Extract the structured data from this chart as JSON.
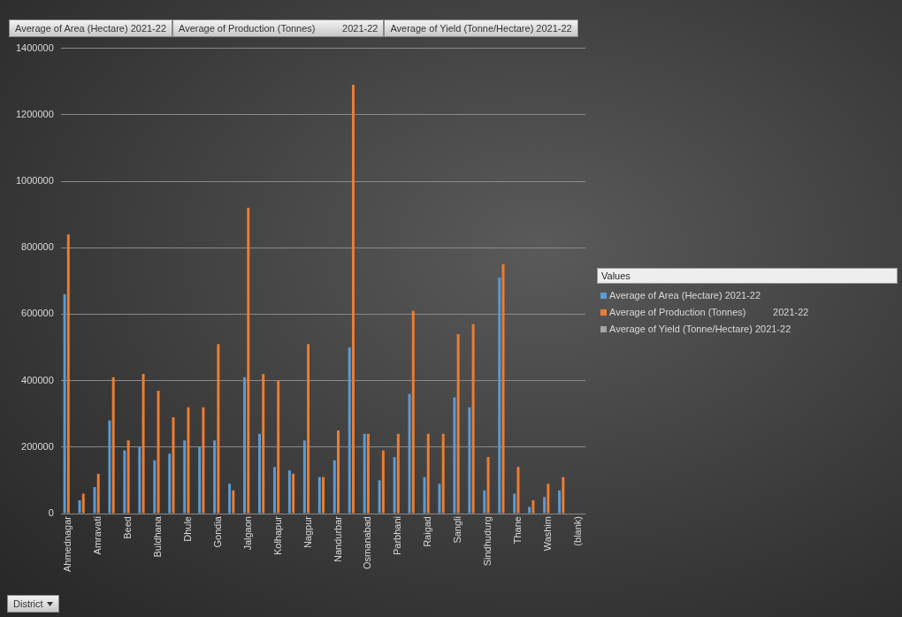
{
  "chart_data": {
    "type": "bar",
    "categories": [
      "Ahmednagar",
      null,
      "Amravati",
      null,
      "Beed",
      null,
      "Buldhana",
      null,
      "Dhule",
      null,
      "Gondia",
      null,
      "Jalgaon",
      null,
      "Kolhapur",
      null,
      "Nagpur",
      null,
      "Nandurbar",
      null,
      "Osmanabad",
      null,
      "Parbhani",
      null,
      "Raigad",
      null,
      "Sangli",
      null,
      "Sindhudurg",
      null,
      "Thane",
      null,
      "Washim",
      null,
      "(blank)"
    ],
    "series": [
      {
        "name": "Average of Area (Hectare) 2021-22",
        "color": "#5b9bd5",
        "values": [
          660000,
          40000,
          80000,
          280000,
          190000,
          200000,
          160000,
          180000,
          220000,
          200000,
          220000,
          90000,
          410000,
          240000,
          140000,
          130000,
          220000,
          110000,
          160000,
          500000,
          240000,
          100000,
          170000,
          360000,
          110000,
          90000,
          350000,
          320000,
          70000,
          710000,
          60000,
          20000,
          50000,
          70000,
          null
        ]
      },
      {
        "name": "Average of Production (Tonnes)          2021-22",
        "color": "#ed7d31",
        "values": [
          840000,
          60000,
          120000,
          410000,
          220000,
          420000,
          370000,
          290000,
          320000,
          320000,
          510000,
          70000,
          920000,
          420000,
          400000,
          120000,
          510000,
          110000,
          250000,
          1290000,
          240000,
          190000,
          240000,
          610000,
          240000,
          240000,
          540000,
          570000,
          170000,
          750000,
          140000,
          40000,
          90000,
          110000,
          null
        ]
      },
      {
        "name": "Average of Yield (Tonne/Hectare) 2021-22",
        "color": "#a5a5a5",
        "values": [
          0,
          0,
          0,
          0,
          0,
          0,
          0,
          0,
          0,
          0,
          0,
          0,
          0,
          0,
          0,
          0,
          0,
          0,
          0,
          0,
          0,
          0,
          0,
          0,
          0,
          0,
          0,
          0,
          0,
          0,
          0,
          0,
          0,
          0,
          null
        ]
      }
    ],
    "ylim": [
      0,
      1400000
    ],
    "yticks": [
      0,
      200000,
      400000,
      600000,
      800000,
      1000000,
      1200000,
      1400000
    ],
    "grid": "y",
    "legend": "right",
    "legend_title": "Values",
    "xlabel": "District",
    "annotations": [
      "Average of Area (Hectare) 2021-22",
      "Average of Production (Tonnes)          2021-22",
      "Average of Yield (Tonne/Hectare) 2021-22"
    ]
  }
}
